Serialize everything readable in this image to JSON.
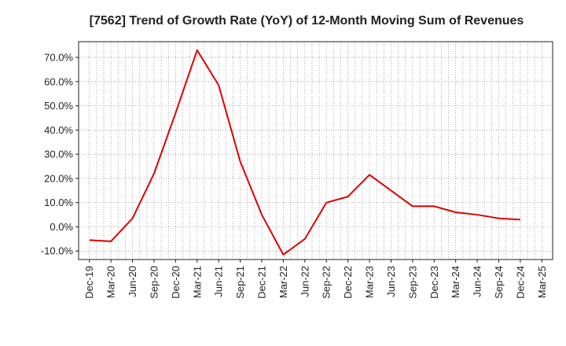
{
  "chart_data": {
    "type": "line",
    "title": "[7562]  Trend of Growth Rate (YoY) of 12-Month Moving Sum of Revenues",
    "xlabel": "",
    "ylabel": "",
    "x_ticks": [
      "Dec-19",
      "Mar-20",
      "Jun-20",
      "Sep-20",
      "Dec-20",
      "Mar-21",
      "Jun-21",
      "Sep-21",
      "Dec-21",
      "Mar-22",
      "Jun-22",
      "Sep-22",
      "Dec-22",
      "Mar-23",
      "Jun-23",
      "Sep-23",
      "Dec-23",
      "Mar-24",
      "Jun-24",
      "Sep-24",
      "Dec-24",
      "Mar-25"
    ],
    "y_ticks": [
      "-10.0%",
      "0.0%",
      "10.0%",
      "20.0%",
      "30.0%",
      "40.0%",
      "50.0%",
      "60.0%",
      "70.0%"
    ],
    "ylim": [
      -13.5,
      76.5
    ],
    "y_tick_values": [
      -10,
      0,
      10,
      20,
      30,
      40,
      50,
      60,
      70
    ],
    "grid": true,
    "line_color": "#dd0000",
    "series": [
      {
        "x": [
          "Dec-19",
          "Mar-20",
          "Jun-20",
          "Sep-20",
          "Dec-20",
          "Mar-21",
          "Jun-21",
          "Sep-21",
          "Dec-21",
          "Mar-22",
          "Jun-22",
          "Sep-22",
          "Dec-22",
          "Mar-23",
          "Jun-23",
          "Sep-23",
          "Dec-23",
          "Mar-24",
          "Jun-24",
          "Sep-24",
          "Dec-24"
        ],
        "values": [
          -5.5,
          -6.0,
          3.5,
          22.0,
          47.0,
          73.0,
          58.5,
          27.0,
          5.0,
          -11.5,
          -5.0,
          10.0,
          12.5,
          21.5,
          15.0,
          8.5,
          8.5,
          6.0,
          5.0,
          3.5,
          3.0
        ]
      }
    ]
  }
}
